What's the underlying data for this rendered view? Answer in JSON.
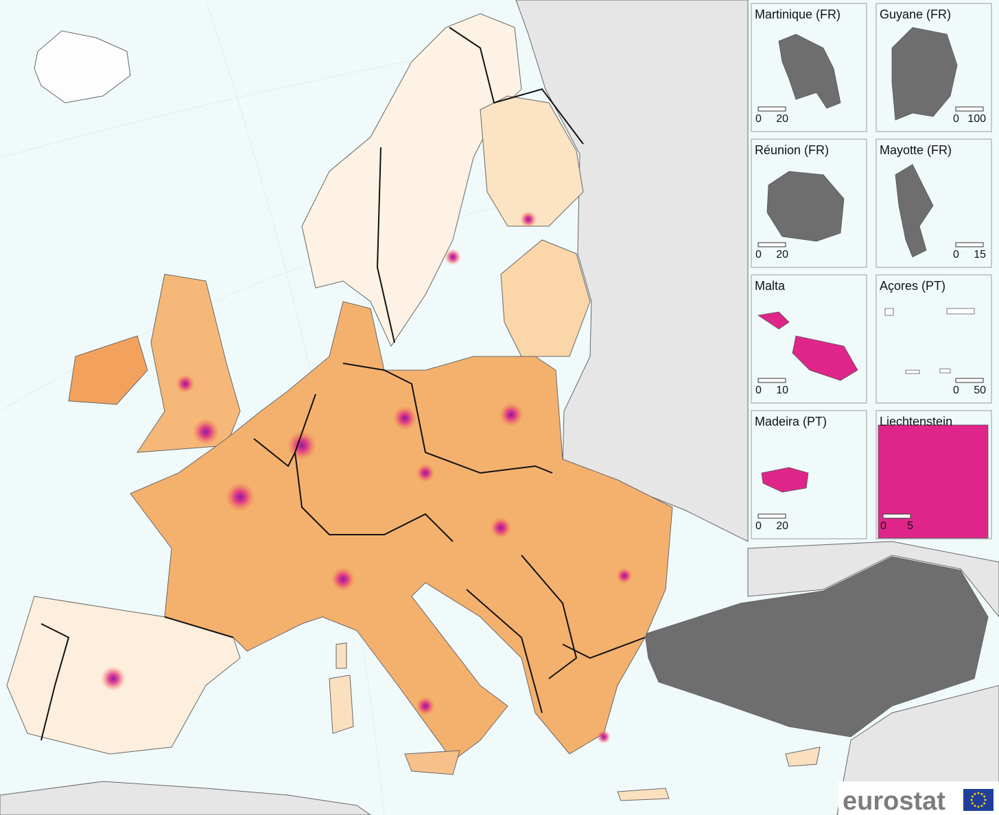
{
  "insets": [
    {
      "title": "Martinique (FR)",
      "scale": [
        0,
        20
      ]
    },
    {
      "title": "Guyane (FR)",
      "scale": [
        0,
        100
      ]
    },
    {
      "title": "Réunion (FR)",
      "scale": [
        0,
        20
      ]
    },
    {
      "title": "Mayotte (FR)",
      "scale": [
        0,
        15
      ]
    },
    {
      "title": "Malta",
      "scale": [
        0,
        10
      ]
    },
    {
      "title": "Açores (PT)",
      "scale": [
        0,
        50
      ]
    },
    {
      "title": "Madeira (PT)",
      "scale": [
        0,
        20
      ]
    },
    {
      "title": "Liechtenstein",
      "scale": [
        0,
        5
      ]
    }
  ],
  "logo": {
    "text": "eurostat"
  }
}
